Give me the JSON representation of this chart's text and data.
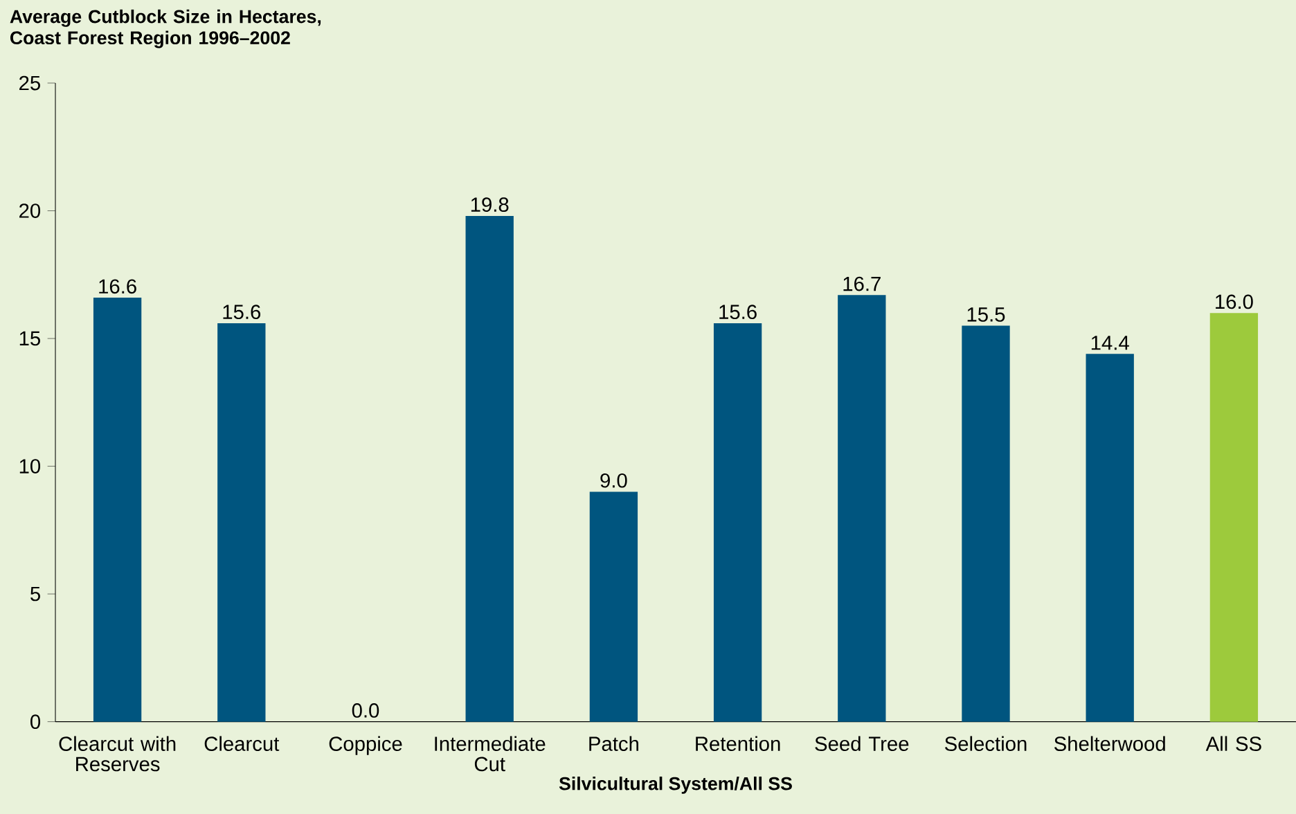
{
  "chart_data": {
    "type": "bar",
    "title": "Average Cutblock Size in Hectares, Coast Forest Region 1996–2002",
    "xlabel": "Silvicultural System/All SS",
    "categories": [
      "Clearcut with Reserves",
      "Clearcut",
      "Coppice",
      "Intermediate Cut",
      "Patch",
      "Retention",
      "Seed Tree",
      "Selection",
      "Shelterwood",
      "All SS"
    ],
    "values": [
      16.6,
      15.6,
      0.0,
      19.8,
      9.0,
      15.6,
      16.7,
      15.5,
      14.4,
      16.0
    ],
    "value_labels": [
      "16.6",
      "15.6",
      "0.0",
      "19.8",
      "9.0",
      "15.6",
      "16.7",
      "15.5",
      "14.4",
      "16.0"
    ],
    "colors": [
      "#00557f",
      "#00557f",
      "#00557f",
      "#00557f",
      "#00557f",
      "#00557f",
      "#00557f",
      "#00557f",
      "#00557f",
      "#9dca3c"
    ],
    "ylim": [
      0,
      25
    ],
    "yticks": [
      0,
      5,
      10,
      15,
      20,
      25
    ],
    "grid": false
  }
}
